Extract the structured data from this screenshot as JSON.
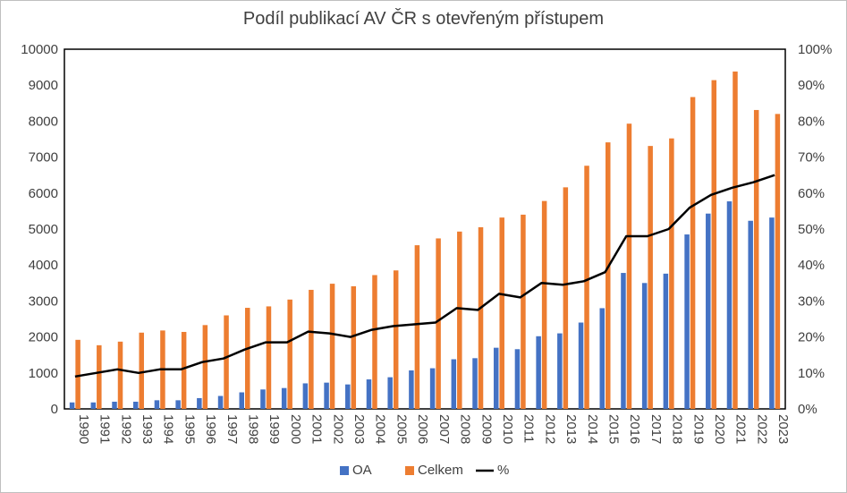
{
  "chart_data": {
    "type": "bar",
    "title": "Podíl publikací AV ČR s otevřeným přístupem",
    "categories": [
      "1990",
      "1991",
      "1992",
      "1993",
      "1994",
      "1995",
      "1996",
      "1997",
      "1998",
      "1999",
      "2000",
      "2001",
      "2002",
      "2003",
      "2004",
      "2005",
      "2006",
      "2007",
      "2008",
      "2009",
      "2010",
      "2011",
      "2012",
      "2013",
      "2014",
      "2015",
      "2016",
      "2017",
      "2018",
      "2019",
      "2020",
      "2021",
      "2022",
      "2023"
    ],
    "series": [
      {
        "name": "OA",
        "kind": "bar",
        "axis": "left",
        "color": "#4472c4",
        "values": [
          180,
          180,
          200,
          200,
          240,
          240,
          300,
          360,
          460,
          540,
          580,
          710,
          730,
          680,
          820,
          880,
          1070,
          1130,
          1380,
          1410,
          1700,
          1660,
          2020,
          2100,
          2400,
          2800,
          3780,
          3500,
          3760,
          4850,
          5430,
          5770,
          5230,
          5320
        ]
      },
      {
        "name": "Celkem",
        "kind": "bar",
        "axis": "left",
        "color": "#ed7d31",
        "values": [
          1920,
          1770,
          1870,
          2120,
          2180,
          2140,
          2330,
          2600,
          2810,
          2850,
          3040,
          3310,
          3480,
          3410,
          3720,
          3850,
          4550,
          4740,
          4930,
          5050,
          5320,
          5400,
          5780,
          6160,
          6760,
          7410,
          7930,
          7310,
          7520,
          8670,
          9140,
          9380,
          8310,
          8200
        ]
      },
      {
        "name": "%",
        "kind": "line",
        "axis": "right",
        "color": "#000000",
        "values": [
          9,
          10,
          11,
          10,
          11,
          11,
          13,
          14,
          16.5,
          18.5,
          18.5,
          21.5,
          21,
          20,
          22,
          23,
          23.5,
          24,
          28,
          27.5,
          32,
          31,
          35,
          34.5,
          35.5,
          38,
          48,
          48,
          50,
          56,
          59.5,
          61.5,
          63,
          65
        ]
      }
    ],
    "y_left": {
      "min": 0,
      "max": 10000,
      "step": 1000
    },
    "y_right": {
      "min": 0,
      "max": 100,
      "step": 10,
      "unit": "%"
    },
    "legend_position": "bottom",
    "grid": false
  }
}
